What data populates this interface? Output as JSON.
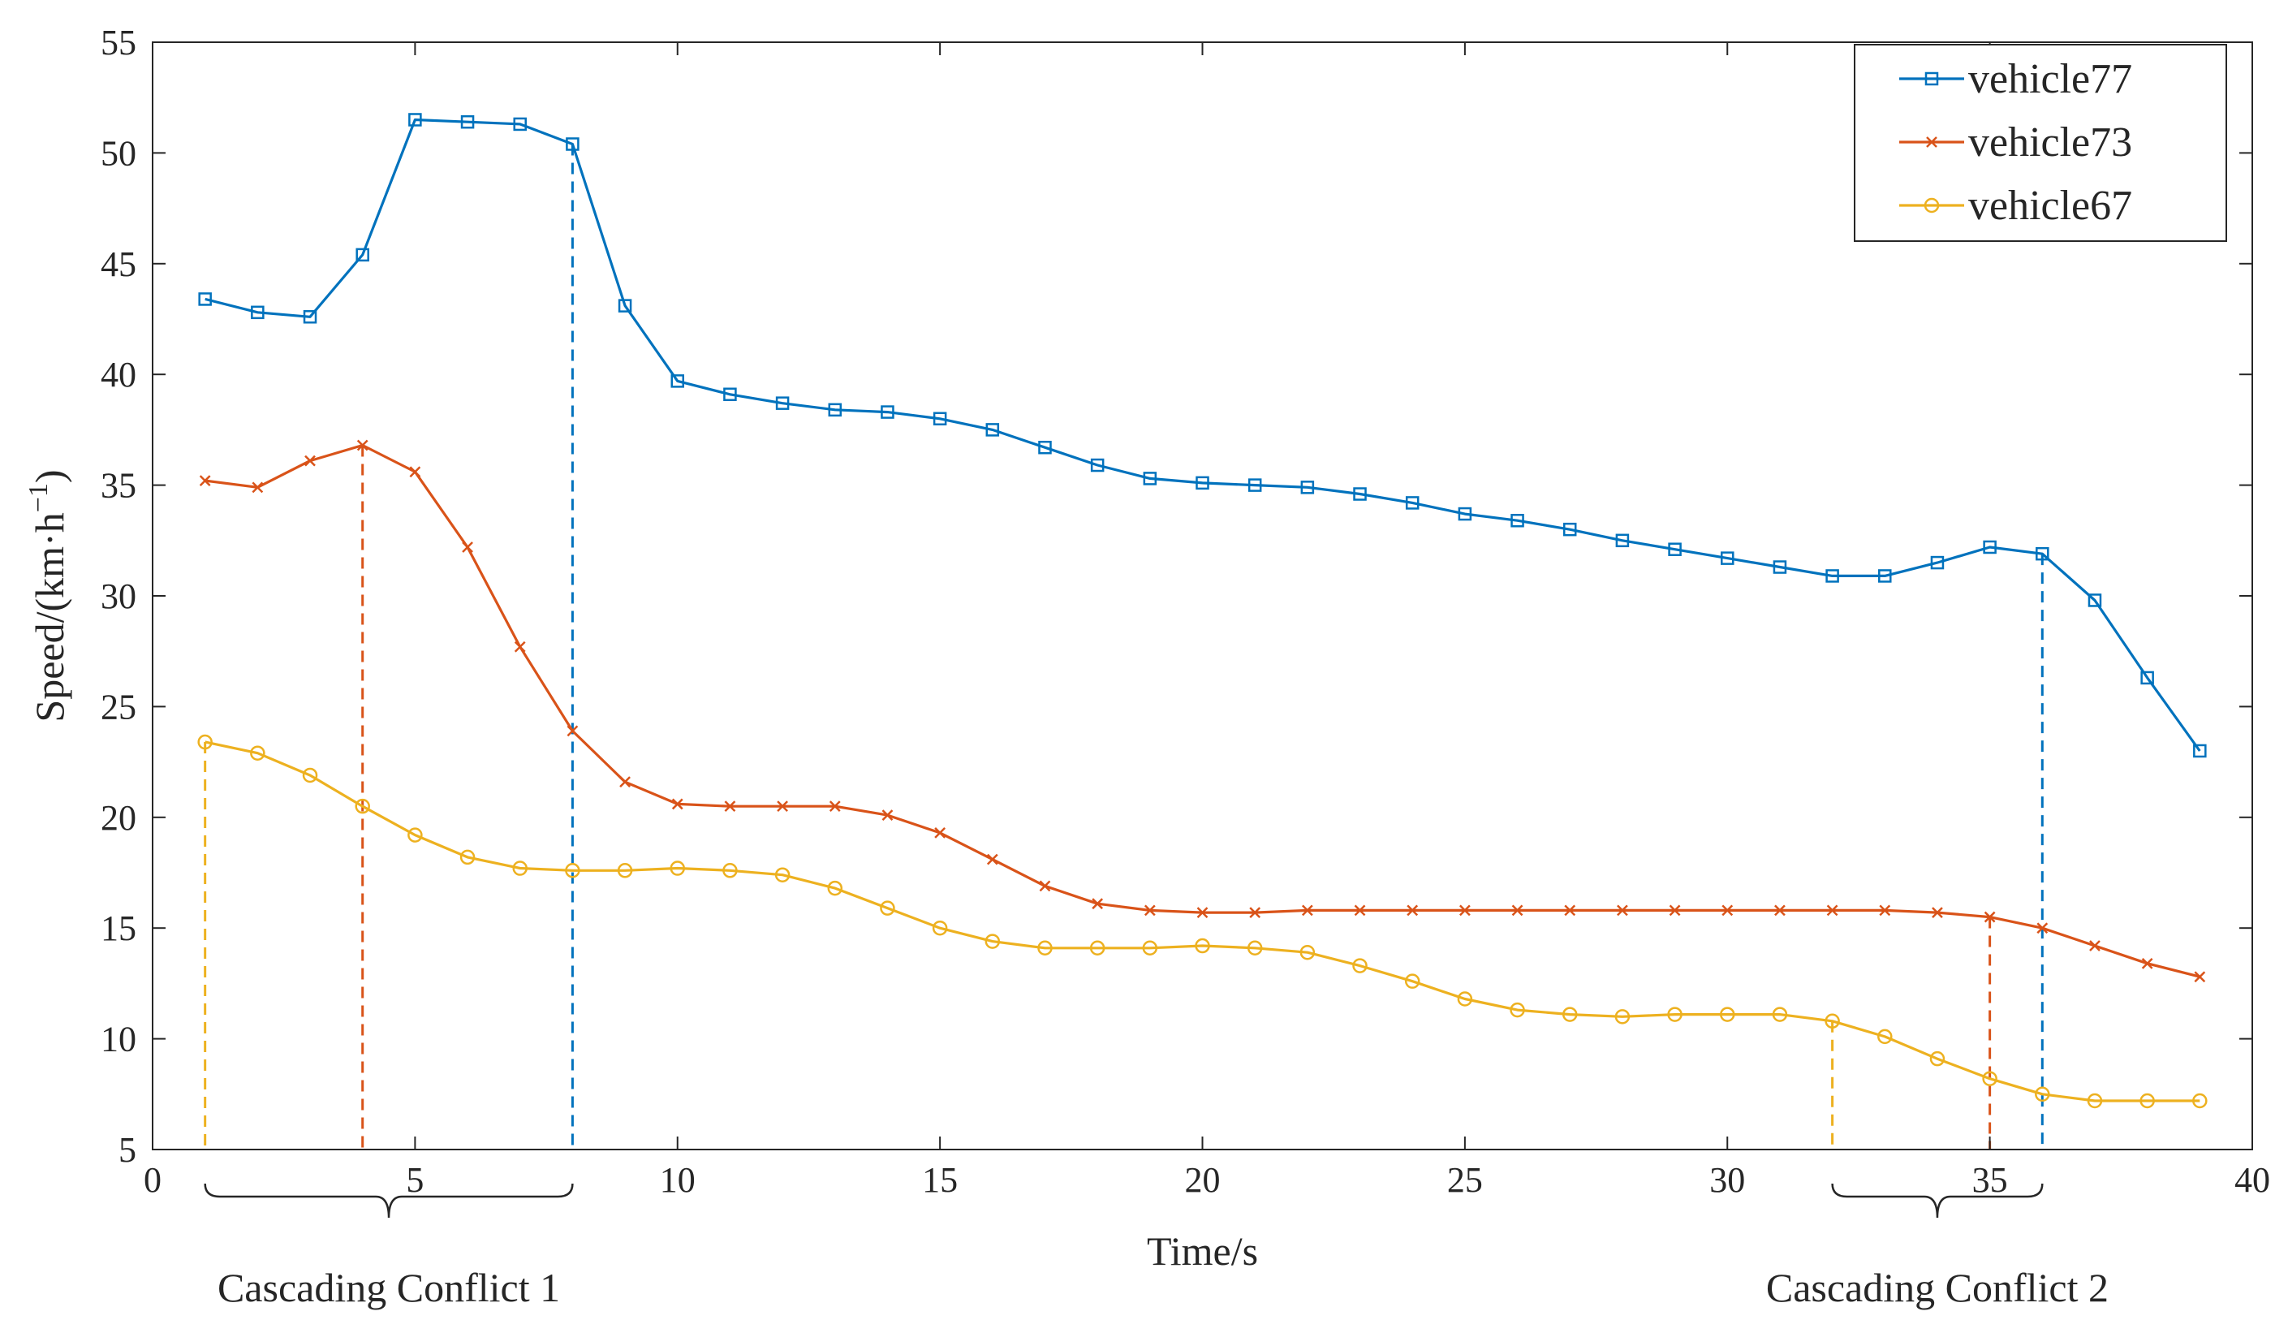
{
  "chart_data": {
    "type": "line",
    "title": "",
    "xlabel": "Time/s",
    "ylabel_prefix": "Speed/(km·h",
    "ylabel_exponent": "−1",
    "ylabel_suffix": ")",
    "xlim": [
      0,
      40
    ],
    "ylim": [
      5,
      55
    ],
    "xticks": [
      0,
      5,
      10,
      15,
      20,
      25,
      30,
      35,
      40
    ],
    "yticks": [
      5,
      10,
      15,
      20,
      25,
      30,
      35,
      40,
      45,
      50,
      55
    ],
    "grid": false,
    "legend_position": "top-right",
    "x": [
      1,
      2,
      3,
      4,
      5,
      6,
      7,
      8,
      9,
      10,
      11,
      12,
      13,
      14,
      15,
      16,
      17,
      18,
      19,
      20,
      21,
      22,
      23,
      24,
      25,
      26,
      27,
      28,
      29,
      30,
      31,
      32,
      33,
      34,
      35,
      36,
      37,
      38,
      39
    ],
    "series": [
      {
        "name": "vehicle77",
        "color": "#0072BD",
        "marker": "square",
        "values": [
          43.4,
          42.8,
          42.6,
          45.4,
          51.5,
          51.4,
          51.3,
          50.4,
          43.1,
          39.7,
          39.1,
          38.7,
          38.4,
          38.3,
          38.0,
          37.5,
          36.7,
          35.9,
          35.3,
          35.1,
          35.0,
          34.9,
          34.6,
          34.2,
          33.7,
          33.4,
          33.0,
          32.5,
          32.1,
          31.7,
          31.3,
          30.9,
          30.9,
          31.5,
          32.2,
          31.9,
          29.8,
          26.3,
          23.0
        ]
      },
      {
        "name": "vehicle73",
        "color": "#D95319",
        "marker": "x",
        "values": [
          35.2,
          34.9,
          36.1,
          36.8,
          35.6,
          32.2,
          27.7,
          23.9,
          21.6,
          20.6,
          20.5,
          20.5,
          20.5,
          20.1,
          19.3,
          18.1,
          16.9,
          16.1,
          15.8,
          15.7,
          15.7,
          15.8,
          15.8,
          15.8,
          15.8,
          15.8,
          15.8,
          15.8,
          15.8,
          15.8,
          15.8,
          15.8,
          15.8,
          15.7,
          15.5,
          15.0,
          14.2,
          13.4,
          12.8
        ]
      },
      {
        "name": "vehicle67",
        "color": "#EDB120",
        "marker": "circle",
        "values": [
          23.4,
          22.9,
          21.9,
          20.5,
          19.2,
          18.2,
          17.7,
          17.6,
          17.6,
          17.7,
          17.6,
          17.4,
          16.8,
          15.9,
          15.0,
          14.4,
          14.1,
          14.1,
          14.1,
          14.2,
          14.1,
          13.9,
          13.3,
          12.6,
          11.8,
          11.3,
          11.1,
          11.0,
          11.1,
          11.1,
          11.1,
          10.8,
          10.1,
          9.1,
          8.2,
          7.5,
          7.2,
          7.2,
          7.2
        ]
      }
    ],
    "reference_lines": [
      {
        "series": "vehicle67",
        "x": 1,
        "y": 23.4,
        "color": "#EDB120"
      },
      {
        "series": "vehicle73",
        "x": 4,
        "y": 36.8,
        "color": "#D95319"
      },
      {
        "series": "vehicle77",
        "x": 8,
        "y": 50.4,
        "color": "#0072BD"
      },
      {
        "series": "vehicle67",
        "x": 32,
        "y": 10.8,
        "color": "#EDB120"
      },
      {
        "series": "vehicle73",
        "x": 35,
        "y": 15.5,
        "color": "#D95319"
      },
      {
        "series": "vehicle77",
        "x": 36,
        "y": 31.9,
        "color": "#0072BD"
      }
    ],
    "annotations": [
      {
        "label": "Cascading Conflict 1",
        "x_start": 1,
        "x_end": 8
      },
      {
        "label": "Cascading Conflict 2",
        "x_start": 32,
        "x_end": 36
      }
    ]
  }
}
